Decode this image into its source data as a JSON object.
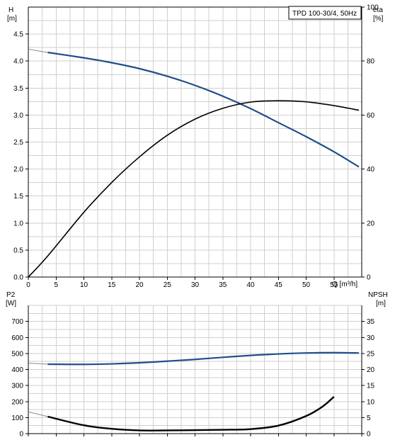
{
  "chart_data": [
    {
      "type": "line",
      "title": "TPD 100-30/4, 50Hz",
      "x_label": "Q [m³/h]",
      "x_ticks": [
        0,
        5,
        10,
        15,
        20,
        25,
        30,
        35,
        40,
        45,
        50,
        55
      ],
      "xlim": [
        0,
        60
      ],
      "left_axis": {
        "label_top": "H",
        "label_unit": "[m]",
        "ylim": [
          0,
          5.0
        ],
        "ticks": [
          "0.0",
          "0.5",
          "1.0",
          "1.5",
          "2.0",
          "2.5",
          "3.0",
          "3.5",
          "4.0",
          "4.5"
        ]
      },
      "right_axis": {
        "label_top": "eta",
        "label_unit": "[%]",
        "ylim": [
          0,
          100
        ],
        "ticks": [
          "0",
          "20",
          "40",
          "60",
          "80",
          "100"
        ]
      },
      "grid": true,
      "series": [
        {
          "axis": "left",
          "color": "#1f4f8b",
          "x": [
            3.5,
            10,
            15,
            20,
            25,
            30,
            35,
            40,
            45,
            50,
            55,
            59.5
          ],
          "y": [
            4.16,
            4.06,
            3.97,
            3.86,
            3.72,
            3.55,
            3.35,
            3.12,
            2.86,
            2.6,
            2.32,
            2.04
          ],
          "extension_x": [
            0,
            3.5
          ],
          "extension_y": [
            4.22,
            4.16
          ]
        },
        {
          "axis": "right",
          "color": "#000000",
          "x": [
            0,
            3.5,
            10,
            15,
            20,
            25,
            30,
            35,
            40,
            45,
            50,
            55,
            59.5
          ],
          "y": [
            0,
            7.8,
            24,
            35,
            44.5,
            52.5,
            58.5,
            62.5,
            64.8,
            65.3,
            64.9,
            63.5,
            61.8
          ]
        }
      ]
    },
    {
      "type": "line",
      "x_label": "",
      "xlim": [
        0,
        60
      ],
      "left_axis": {
        "label_top": "P2",
        "label_unit": "[W]",
        "ylim": [
          0,
          800
        ],
        "ticks": [
          "0",
          "100",
          "200",
          "300",
          "400",
          "500",
          "600",
          "700"
        ]
      },
      "right_axis": {
        "label_top": "NPSH",
        "label_unit": "[m]",
        "ylim": [
          0,
          40
        ],
        "ticks": [
          "0",
          "5",
          "10",
          "15",
          "20",
          "25",
          "30",
          "35"
        ]
      },
      "grid": true,
      "series": [
        {
          "axis": "left",
          "color": "#1f4f8b",
          "x": [
            3.5,
            10,
            15,
            20,
            25,
            30,
            35,
            40,
            45,
            50,
            55,
            59.5
          ],
          "y": [
            433,
            432,
            435,
            442,
            452,
            463,
            476,
            488,
            497,
            503,
            505,
            503
          ],
          "extension_x": [
            0,
            3.5
          ],
          "extension_y": [
            440,
            433
          ]
        },
        {
          "axis": "right",
          "color": "#000000",
          "x": [
            3.5,
            10,
            15,
            20,
            25,
            30,
            35,
            40,
            45,
            50,
            53,
            55
          ],
          "y": [
            5.3,
            2.6,
            1.5,
            1.0,
            1.0,
            1.1,
            1.2,
            1.4,
            2.5,
            5.5,
            8.5,
            11.5
          ],
          "extension_x": [
            0,
            3.5
          ],
          "extension_y": [
            6.8,
            5.3
          ]
        }
      ]
    }
  ]
}
